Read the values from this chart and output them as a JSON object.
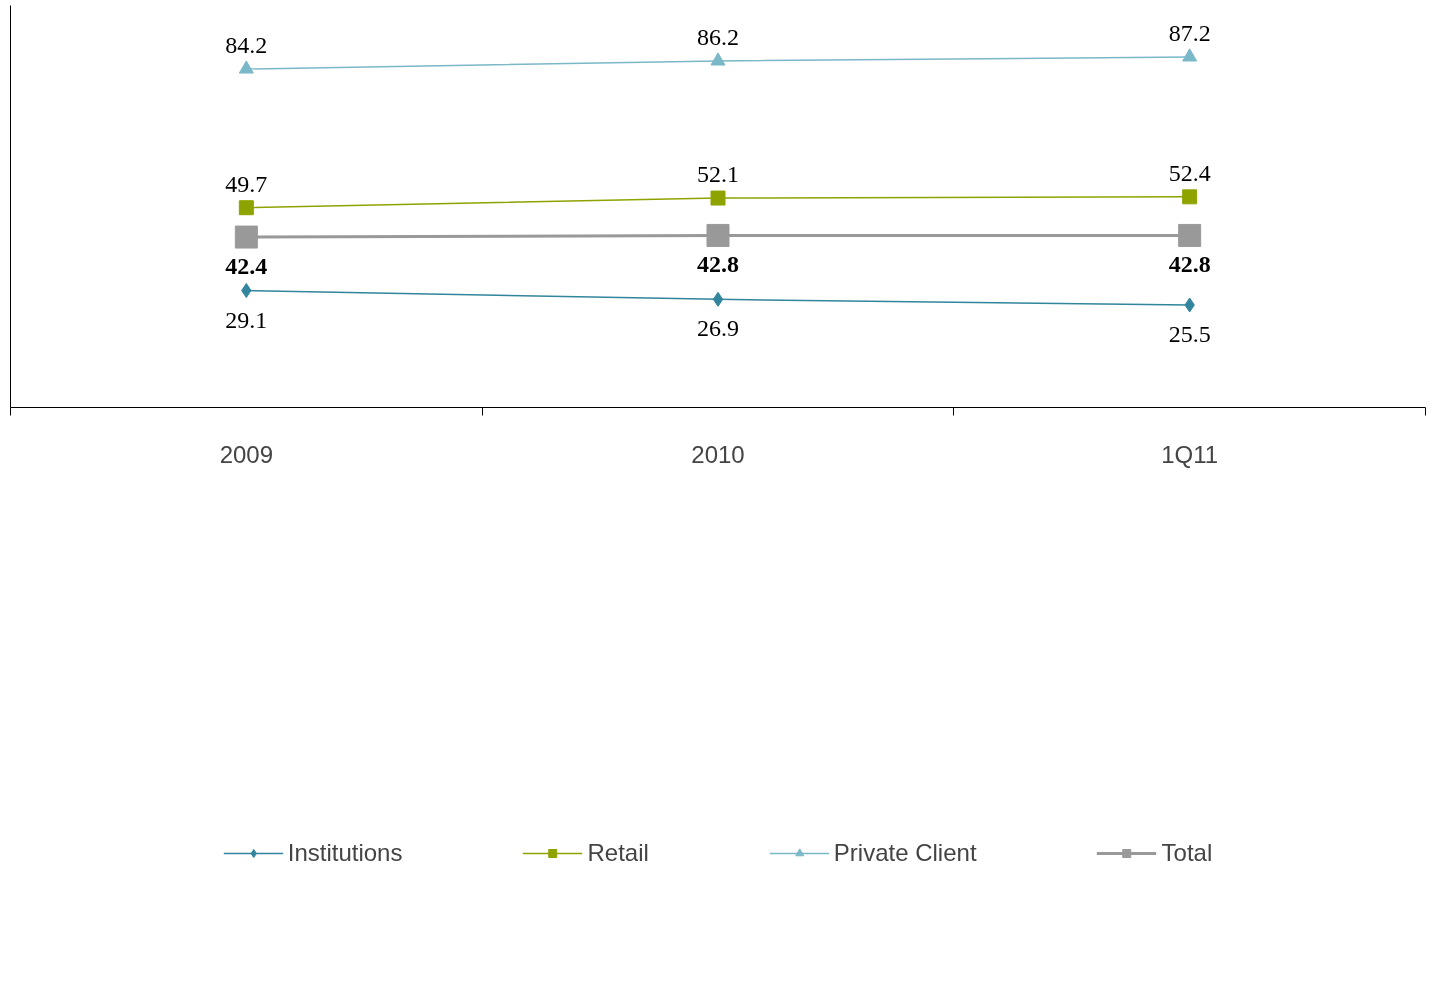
{
  "chart_data": {
    "type": "line",
    "categories": [
      "2009",
      "2010",
      "1Q11"
    ],
    "ylim": [
      0,
      100
    ],
    "tick_labels": "x",
    "grid": false,
    "legend": "bottom",
    "data_labels": true,
    "series": [
      {
        "name": "Institutions",
        "color": "#31859c",
        "marker": "diamond",
        "values": [
          29.1,
          26.9,
          25.5
        ]
      },
      {
        "name": "Retail",
        "color": "#8fa300",
        "marker": "square",
        "values": [
          49.7,
          52.1,
          52.4
        ]
      },
      {
        "name": "Private Client",
        "color": "#7ab8c8",
        "marker": "triangle",
        "values": [
          84.2,
          86.2,
          87.2
        ]
      },
      {
        "name": "Total",
        "color": "#999999",
        "marker": "square",
        "values": [
          42.4,
          42.8,
          42.8
        ]
      }
    ]
  }
}
